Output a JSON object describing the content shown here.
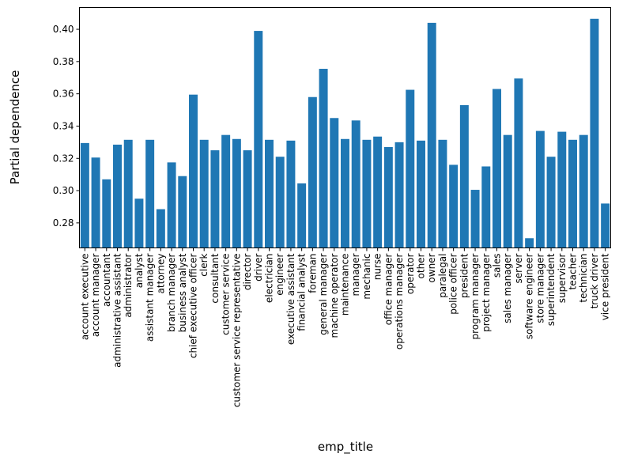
{
  "chart_data": {
    "type": "bar",
    "title": "",
    "xlabel": "emp_title",
    "ylabel": "Partial dependence",
    "ylim": [
      0.2645,
      0.4135
    ],
    "yticks": [
      0.28,
      0.3,
      0.32,
      0.34,
      0.36,
      0.38,
      0.4
    ],
    "ytick_labels": [
      "0.28",
      "0.30",
      "0.32",
      "0.34",
      "0.36",
      "0.38",
      "0.40"
    ],
    "grid": false,
    "bar_color": "#1f77b4",
    "categories": [
      "account executive",
      "account manager",
      "accountant",
      "administrative assistant",
      "administrator",
      "analyst",
      "assistant manager",
      "attorney",
      "branch manager",
      "business analyst",
      "chief executive officer",
      "clerk",
      "consultant",
      "customer service",
      "customer service representative",
      "director",
      "driver",
      "electrician",
      "engineer",
      "executive assistant",
      "financial analyst",
      "foreman",
      "general manager",
      "machine operator",
      "maintenance",
      "manager",
      "mechanic",
      "nurse",
      "office manager",
      "operations manager",
      "operator",
      "other",
      "owner",
      "paralegal",
      "police officer",
      "president",
      "program manager",
      "project manager",
      "sales",
      "sales manager",
      "server",
      "software engineer",
      "store manager",
      "superintendent",
      "supervisor",
      "teacher",
      "technician",
      "truck driver",
      "vice president"
    ],
    "values": [
      0.3295,
      0.3205,
      0.307,
      0.3285,
      0.3315,
      0.295,
      0.3315,
      0.2885,
      0.3175,
      0.309,
      0.3595,
      0.3315,
      0.325,
      0.3345,
      0.332,
      0.325,
      0.399,
      0.3315,
      0.321,
      0.331,
      0.3045,
      0.358,
      0.3755,
      0.345,
      0.332,
      0.3435,
      0.3315,
      0.3335,
      0.327,
      0.33,
      0.3625,
      0.331,
      0.404,
      0.3315,
      0.316,
      0.353,
      0.3005,
      0.315,
      0.363,
      0.3345,
      0.3695,
      0.2705,
      0.337,
      0.321,
      0.3365,
      0.3315,
      0.3345,
      0.4065,
      0.292
    ]
  }
}
